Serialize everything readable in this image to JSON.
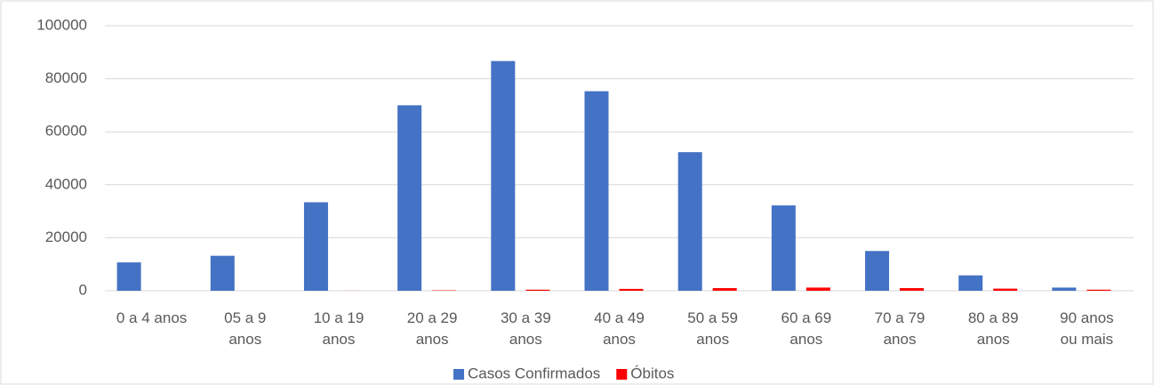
{
  "chart_data": {
    "type": "bar",
    "categories": [
      "0 a 4 anos",
      "05 a 9\nanos",
      "10 a 19\nanos",
      "20 a 29\nanos",
      "30 a 39\nanos",
      "40 a 49\nanos",
      "50 a 59\nanos",
      "60 a 69\nanos",
      "70 a 79\nanos",
      "80 a 89\nanos",
      "90 anos\nou mais"
    ],
    "series": [
      {
        "name": "Casos Confirmados",
        "color": "#4472c4",
        "values": [
          10700,
          13200,
          33400,
          70000,
          86700,
          75300,
          52300,
          32200,
          15000,
          5800,
          1200
        ]
      },
      {
        "name": "Óbitos",
        "color": "#ff0000",
        "values": [
          5,
          3,
          20,
          150,
          400,
          700,
          1000,
          1200,
          1000,
          800,
          400
        ]
      }
    ],
    "ylim": [
      0,
      100000
    ],
    "yticks": [
      0,
      20000,
      40000,
      60000,
      80000,
      100000
    ],
    "grid": true,
    "legend": "bottom"
  }
}
